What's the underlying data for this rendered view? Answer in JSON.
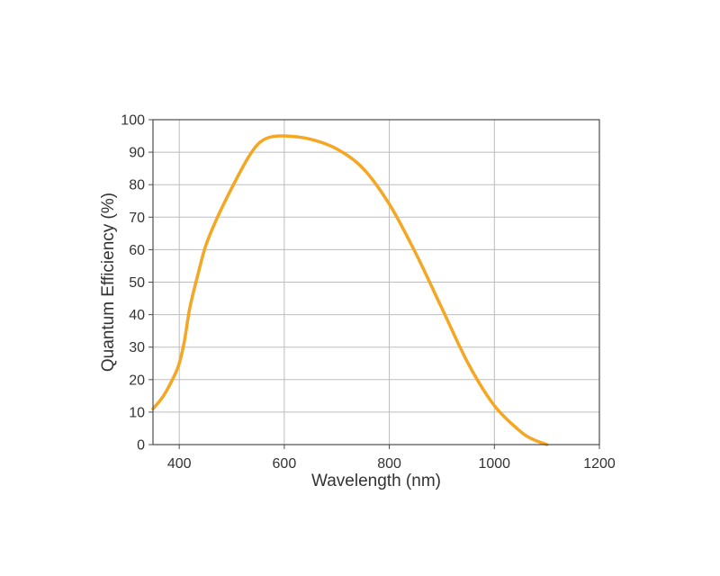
{
  "chart_data": {
    "type": "line",
    "title": "",
    "xlabel": "Wavelength (nm)",
    "ylabel": "Quantum Efficiency (%)",
    "xlim": [
      350,
      1200
    ],
    "ylim": [
      0,
      100
    ],
    "xticks": [
      400,
      600,
      800,
      1000,
      1200
    ],
    "yticks": [
      0,
      10,
      20,
      30,
      40,
      50,
      60,
      70,
      80,
      90,
      100
    ],
    "grid": true,
    "legend": "none",
    "series": [
      {
        "color": "#F5A623",
        "x": [
          350,
          370,
          390,
          400,
          410,
          420,
          435,
          450,
          470,
          500,
          530,
          550,
          570,
          600,
          650,
          700,
          750,
          800,
          850,
          900,
          950,
          1000,
          1050,
          1075,
          1100
        ],
        "y": [
          11,
          15,
          21,
          25,
          32,
          42,
          52,
          61,
          69,
          79,
          88,
          92.5,
          94.5,
          95,
          94,
          91,
          85,
          74,
          59,
          42,
          25,
          12,
          4,
          1.5,
          0
        ]
      }
    ]
  }
}
